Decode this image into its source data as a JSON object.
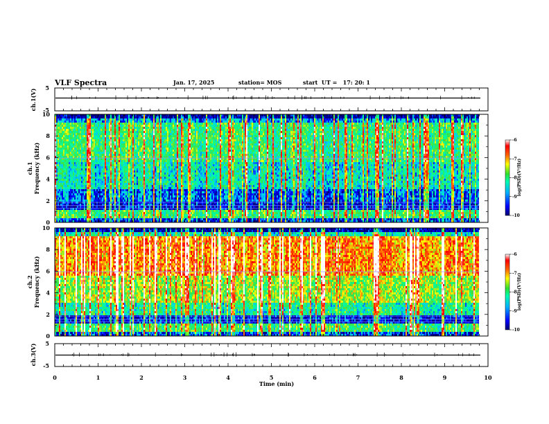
{
  "header": {
    "title": "VLF Spectra",
    "date": "Jan. 17, 2025",
    "station": "station= MOS",
    "start_ut": "start  UT =   17: 20: 1"
  },
  "chart_data": [
    {
      "type": "line",
      "panel": "ch1-waveform",
      "ylabel": "ch.1(V)",
      "ylim": [
        -5,
        5
      ],
      "yticks": [
        "5",
        "-5"
      ],
      "xlim": [
        0,
        10
      ],
      "series": [
        {
          "x": [
            0,
            9.8
          ],
          "y": [
            0,
            0
          ]
        }
      ]
    },
    {
      "type": "heatmap",
      "panel": "ch1-spectrogram",
      "ylabel_line1": "ch.1",
      "ylabel_line2": "Frequency (kHz)",
      "ylim": [
        0,
        10
      ],
      "yticks": [
        "0",
        "2",
        "4",
        "6",
        "8",
        "10"
      ],
      "xlim": [
        0,
        9.8
      ],
      "colorbar": {
        "label": "log(PSD)(V²/Hz)",
        "ticks": [
          "-6",
          "-7",
          "-8",
          "-9",
          "-10"
        ],
        "range": [
          -10,
          -6
        ]
      }
    },
    {
      "type": "heatmap",
      "panel": "ch2-spectrogram",
      "ylabel_line1": "ch.2",
      "ylabel_line2": "Frequency (kHz)",
      "ylim": [
        0,
        10
      ],
      "yticks": [
        "0",
        "2",
        "4",
        "6",
        "8",
        "10"
      ],
      "xlim": [
        0,
        9.8
      ],
      "colorbar": {
        "label": "log(PSD)(V²/Hz)",
        "ticks": [
          "-6",
          "-7",
          "-8",
          "-9",
          "-10"
        ],
        "range": [
          -10,
          -6
        ]
      }
    },
    {
      "type": "line",
      "panel": "ch3-waveform",
      "ylabel": "ch.3(V)",
      "ylim": [
        -5,
        5
      ],
      "yticks": [
        "5",
        "-5"
      ],
      "xlim": [
        0,
        10
      ],
      "series": [
        {
          "x": [
            0,
            9.8
          ],
          "y": [
            0,
            0
          ]
        }
      ]
    }
  ],
  "x_axis": {
    "label": "Time (min)",
    "ticks": [
      "0",
      "1",
      "2",
      "3",
      "4",
      "5",
      "6",
      "7",
      "8",
      "9",
      "10"
    ],
    "range": [
      0,
      10
    ]
  },
  "colors": {
    "colormap": [
      "#000080",
      "#0000ff",
      "#00c0ff",
      "#00ffa0",
      "#40e040",
      "#ffff00",
      "#ff6000",
      "#ff0000",
      "#ffffff"
    ]
  }
}
